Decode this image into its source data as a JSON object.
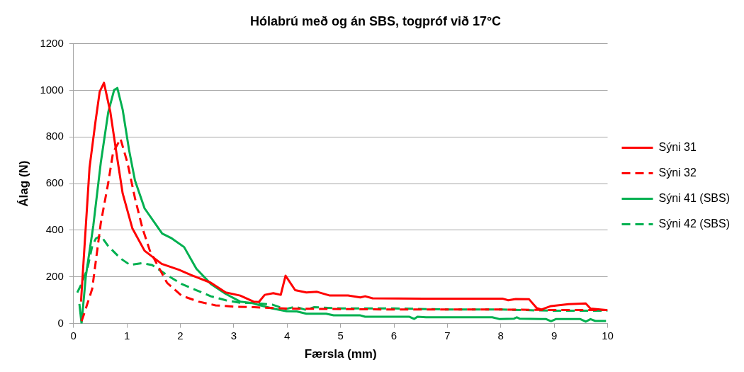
{
  "chart_data": {
    "type": "line",
    "title": "Hólabrú með og án SBS, togpróf við 17°C",
    "xlabel": "Færsla (mm)",
    "ylabel": "Álag (N)",
    "xlim": [
      0,
      10
    ],
    "xticks": [
      0,
      1,
      2,
      3,
      4,
      5,
      6,
      7,
      8,
      9,
      10
    ],
    "ylim": [
      0,
      1200
    ],
    "yticks": [
      0,
      200,
      400,
      600,
      800,
      1000,
      1200
    ],
    "grid": "y",
    "legend": "right",
    "marker": "none",
    "series": [
      {
        "name": "Sýni 31",
        "color": "#ff0000",
        "line_style": "solid",
        "x": [
          0.14,
          0.3,
          0.41,
          0.49,
          0.57,
          0.69,
          0.81,
          0.92,
          1.1,
          1.33,
          1.65,
          1.98,
          2.2,
          2.57,
          2.85,
          3.12,
          3.37,
          3.47,
          3.58,
          3.74,
          3.88,
          3.97,
          4.15,
          4.36,
          4.56,
          4.8,
          5.14,
          5.37,
          5.46,
          5.6,
          6.56,
          8.03,
          8.14,
          8.28,
          8.53,
          8.67,
          8.76,
          8.94,
          9.27,
          9.59,
          9.68,
          9.97
        ],
        "values": [
          94,
          669,
          864,
          994,
          1032,
          906,
          721,
          558,
          409,
          312,
          256,
          230,
          208,
          175,
          133,
          120,
          94,
          92,
          123,
          130,
          123,
          205,
          143,
          133,
          136,
          120,
          120,
          112,
          117,
          108,
          107,
          107,
          100,
          105,
          104,
          67,
          60,
          75,
          83,
          86,
          64,
          58
        ]
      },
      {
        "name": "Sýni 32",
        "color": "#ff0000",
        "line_style": "dashed",
        "x": [
          0.15,
          0.19,
          0.35,
          0.51,
          0.65,
          0.74,
          0.88,
          1.01,
          1.15,
          1.29,
          1.43,
          1.56,
          1.75,
          2.02,
          2.34,
          2.66,
          3.03,
          3.38,
          4,
          5,
          6,
          7,
          8,
          9,
          10
        ],
        "values": [
          10,
          36,
          149,
          430,
          603,
          733,
          792,
          689,
          538,
          409,
          312,
          256,
          175,
          120,
          94,
          78,
          72,
          70,
          64,
          62,
          60,
          60,
          60,
          58,
          58
        ]
      },
      {
        "name": "Sýni 41 (SBS)",
        "color": "#00b050",
        "line_style": "solid",
        "x": [
          0.11,
          0.15,
          0.23,
          0.37,
          0.51,
          0.65,
          0.76,
          0.82,
          0.92,
          1.04,
          1.15,
          1.33,
          1.66,
          1.84,
          2.07,
          2.3,
          2.57,
          2.85,
          3.12,
          3.35,
          3.4,
          3.72,
          3.99,
          4.18,
          4.36,
          4.73,
          4.87,
          5.37,
          5.46,
          6.29,
          6.38,
          6.44,
          6.6,
          7.84,
          7.98,
          8.25,
          8.3,
          8.35,
          8.85,
          8.94,
          9.03,
          9.49,
          9.59,
          9.68,
          9.77,
          9.97
        ],
        "values": [
          84,
          0,
          202,
          419,
          689,
          906,
          1001,
          1010,
          917,
          744,
          614,
          494,
          386,
          365,
          328,
          235,
          170,
          127,
          94,
          88,
          84,
          65,
          53,
          52,
          42,
          42,
          35,
          35,
          29,
          29,
          20,
          29,
          27,
          27,
          19,
          21,
          27,
          21,
          19,
          10,
          19,
          19,
          8,
          19,
          11,
          11
        ]
      },
      {
        "name": "Sýni 42 (SBS)",
        "color": "#00b050",
        "line_style": "dashed",
        "x": [
          0.07,
          0.14,
          0.26,
          0.35,
          0.42,
          0.51,
          0.65,
          0.88,
          1.06,
          1.29,
          1.47,
          1.75,
          2.02,
          2.3,
          2.57,
          2.85,
          3.12,
          3.37,
          3.72,
          3.97,
          4.15,
          4.36,
          4.5,
          5,
          6,
          7,
          8,
          9,
          10
        ],
        "values": [
          133,
          165,
          235,
          332,
          365,
          376,
          332,
          279,
          251,
          259,
          251,
          208,
          170,
          143,
          117,
          100,
          89,
          88,
          81,
          62,
          72,
          58,
          70,
          65,
          65,
          60,
          60,
          55,
          55
        ]
      }
    ]
  }
}
